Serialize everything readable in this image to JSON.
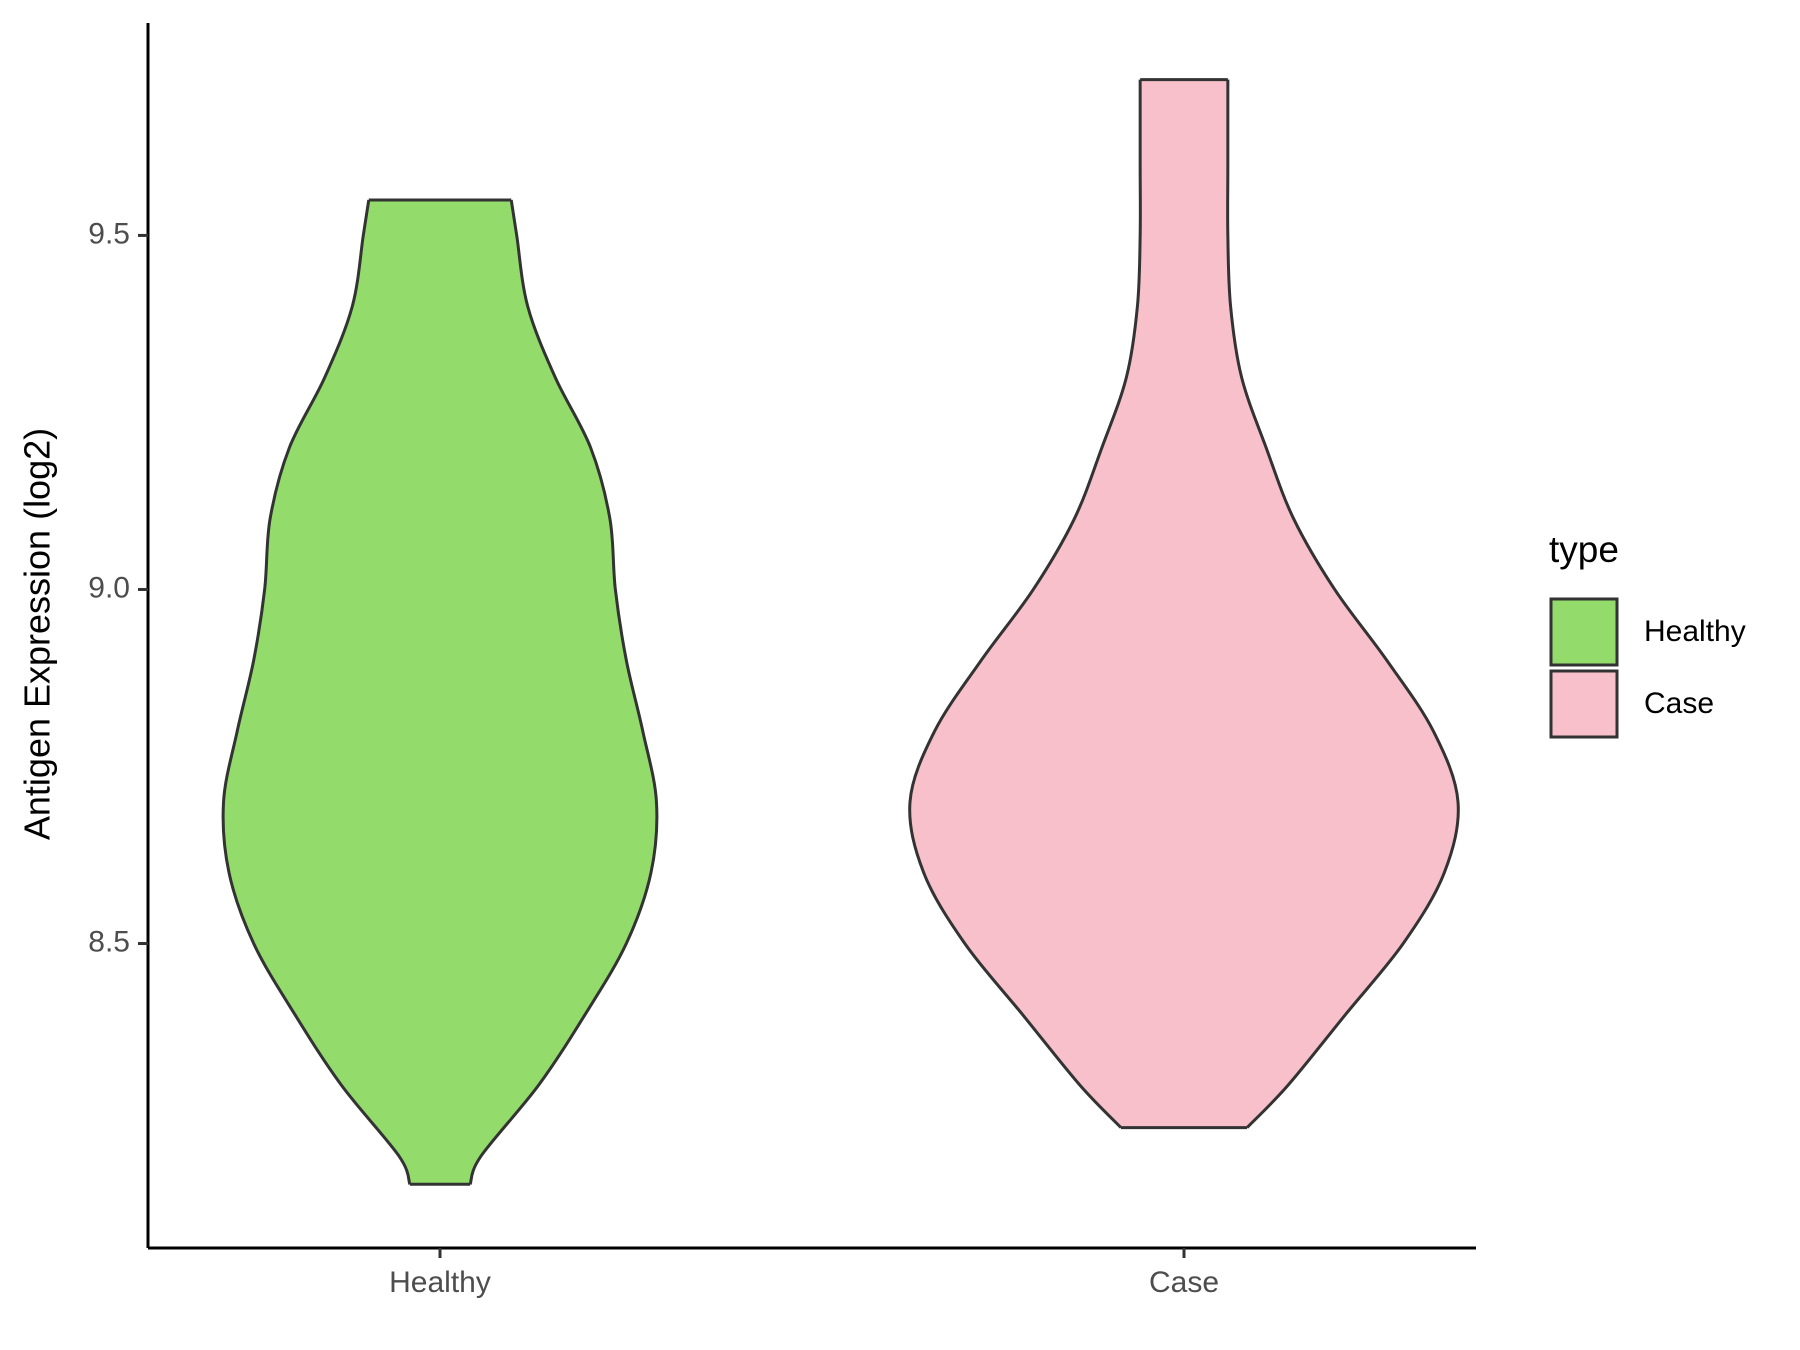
{
  "chart_data": {
    "type": "violin",
    "y_label": "Antigen Expression (log2)",
    "categories": [
      "Healthy",
      "Case"
    ],
    "legend_title": "type",
    "legend": "right",
    "ylim": [
      8.07,
      9.8
    ],
    "yticks": [
      8.5,
      {
        "value": 9,
        "label": "9.0"
      },
      9.5
    ],
    "series": [
      {
        "name": "Healthy",
        "color": "#93dc6b",
        "y": [
          8.16,
          8.2,
          8.3,
          8.4,
          8.5,
          8.6,
          8.7,
          8.8,
          8.9,
          9.0,
          9.1,
          9.2,
          9.3,
          9.4,
          9.5,
          9.55
        ],
        "density": [
          0.11,
          0.15,
          0.36,
          0.53,
          0.68,
          0.77,
          0.79,
          0.74,
          0.68,
          0.64,
          0.62,
          0.55,
          0.42,
          0.32,
          0.28,
          0.26
        ]
      },
      {
        "name": "Case",
        "color": "#f7c0cb",
        "y": [
          8.24,
          8.3,
          8.4,
          8.5,
          8.6,
          8.7,
          8.8,
          8.9,
          9.0,
          9.1,
          9.2,
          9.3,
          9.4,
          9.5,
          9.6,
          9.72
        ],
        "density": [
          0.23,
          0.38,
          0.59,
          0.8,
          0.95,
          1.0,
          0.91,
          0.74,
          0.55,
          0.4,
          0.3,
          0.21,
          0.17,
          0.16,
          0.16,
          0.16
        ]
      }
    ]
  }
}
